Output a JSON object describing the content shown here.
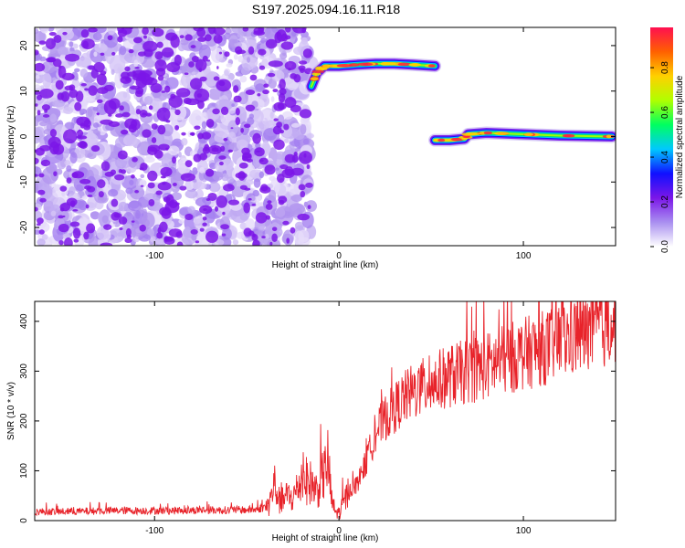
{
  "title": "S197.2025.094.16.11.R18",
  "colors": {
    "noise": "#7b16e8",
    "snr_line": "#e8232a",
    "axis": "#000000"
  },
  "chart_data": [
    {
      "type": "heatmap",
      "xlabel": "Height of straight line (km)",
      "ylabel": "Frequency (Hz)",
      "xlim": [
        -165,
        150
      ],
      "ylim": [
        -24,
        24
      ],
      "x_ticks": [
        -100,
        0,
        100
      ],
      "x_tick_labels": [
        "-100",
        "0",
        "100"
      ],
      "y_ticks": [
        20,
        10,
        0,
        -10,
        -20
      ],
      "y_tick_labels": [
        "20",
        "10",
        "0",
        "-10",
        "-20"
      ],
      "grid": false,
      "noise_region": {
        "x": [
          -165,
          -15
        ],
        "y": [
          -24,
          24
        ],
        "description_value": 0.35
      },
      "tracks": [
        {
          "x": [
            -15,
            -12,
            -8,
            0,
            10,
            20,
            30,
            40,
            52
          ],
          "y": [
            11,
            14,
            15.5,
            15.5,
            15.8,
            16,
            16,
            15.8,
            15.5
          ],
          "peak": 0.95
        },
        {
          "x": [
            52,
            60,
            68,
            70,
            80,
            100,
            120,
            148
          ],
          "y": [
            -0.8,
            -0.8,
            -0.5,
            0.5,
            0.8,
            0.5,
            0.2,
            0
          ],
          "peak": 0.95
        }
      ],
      "colorbar": {
        "label": "Normalized spectral amplitude",
        "range": [
          0,
          0.98
        ],
        "ticks": [
          0.0,
          0.2,
          0.4,
          0.6,
          0.8
        ],
        "tick_labels": [
          "0.0",
          "0.2",
          "0.4",
          "0.6",
          "0.8"
        ],
        "stops": [
          "#ffffff",
          "#a98ff0",
          "#7b16e8",
          "#1010ff",
          "#00c8ff",
          "#00ff60",
          "#b0ff00",
          "#ffd000",
          "#ff6000",
          "#ff1050"
        ]
      }
    },
    {
      "type": "line",
      "xlabel": "Height of straight line (km)",
      "ylabel": "SNR (10 * v/v)",
      "xlim": [
        -165,
        150
      ],
      "ylim": [
        0,
        440
      ],
      "x_ticks": [
        -100,
        0,
        100
      ],
      "x_tick_labels": [
        "-100",
        "0",
        "100"
      ],
      "y_ticks": [
        0,
        100,
        200,
        300,
        400
      ],
      "y_tick_labels": [
        "0",
        "100",
        "200",
        "300",
        "400"
      ],
      "grid": false,
      "series": [
        {
          "x": [
            -165,
            -150,
            -135,
            -120,
            -105,
            -90,
            -75,
            -60,
            -45,
            -38,
            -35,
            -32,
            -28,
            -25,
            -20,
            -15,
            -12,
            -8,
            -6,
            -4,
            -2,
            0,
            5,
            10,
            15,
            20,
            25,
            30,
            35,
            40,
            50,
            60,
            70,
            80,
            90,
            100,
            110,
            120,
            130,
            140,
            150
          ],
          "y": [
            18,
            18,
            19,
            20,
            20,
            20,
            21,
            21,
            22,
            30,
            75,
            35,
            50,
            45,
            85,
            75,
            60,
            95,
            120,
            40,
            18,
            15,
            55,
            75,
            120,
            180,
            205,
            225,
            245,
            258,
            275,
            290,
            300,
            310,
            323,
            335,
            345,
            360,
            372,
            385,
            398
          ]
        }
      ]
    }
  ]
}
